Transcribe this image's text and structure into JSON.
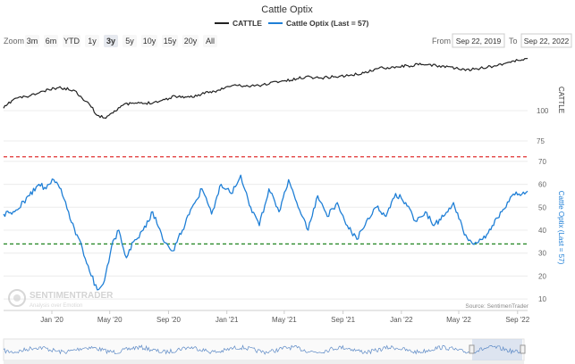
{
  "title": "Cattle Optix",
  "legend": [
    {
      "name": "CATTLE",
      "color": "#222222"
    },
    {
      "name": "Cattle Optix (Last = 57)",
      "color": "#1f7fd6"
    }
  ],
  "zoom": {
    "label": "Zoom",
    "buttons": [
      "3m",
      "6m",
      "YTD",
      "1y",
      "3y",
      "5y",
      "10y",
      "15y",
      "20y",
      "All"
    ],
    "active": "3y"
  },
  "range": {
    "from_label": "From",
    "from_value": "Sep 22, 2019",
    "to_label": "To",
    "to_value": "Sep 22, 2022"
  },
  "source": "Source: SentimenTrader",
  "logo": {
    "name": "SENTIMENTRADER",
    "tagline": "Analysis over Emotion"
  },
  "colors": {
    "cattle": "#222222",
    "optix": "#1f7fd6",
    "upper_line": "#e03030",
    "lower_line": "#2a8a2a",
    "navigator_fill": "#c9d6ea"
  },
  "chart_data": {
    "type": "line",
    "x_range": [
      "2019-09-22",
      "2022-09-22"
    ],
    "x_ticks": [
      "Jan '20",
      "May '20",
      "Sep '20",
      "Jan '21",
      "May '21",
      "Sep '21",
      "Jan '22",
      "May '22",
      "Sep '22"
    ],
    "x_tick_dates": [
      "2020-01-01",
      "2020-05-01",
      "2020-09-01",
      "2021-01-01",
      "2021-05-01",
      "2021-09-01",
      "2022-01-01",
      "2022-05-01",
      "2022-09-01"
    ],
    "upper_axis": {
      "label": "CATTLE",
      "ticks": [
        75,
        100
      ],
      "ylim": [
        75,
        150
      ]
    },
    "lower_axis": {
      "label": "Cattle Optix (Last = 57)",
      "ticks": [
        10,
        20,
        30,
        40,
        50,
        60,
        70
      ],
      "ylim": [
        5,
        75
      ]
    },
    "reference_lines": [
      {
        "value": 72,
        "color": "#e03030",
        "style": "dashed"
      },
      {
        "value": 34,
        "color": "#2a8a2a",
        "style": "dashed"
      }
    ],
    "series": [
      {
        "name": "CATTLE",
        "axis": "upper",
        "x": [
          "2019-09-22",
          "2019-10-15",
          "2019-11-15",
          "2019-12-15",
          "2020-01-15",
          "2020-02-15",
          "2020-03-01",
          "2020-03-20",
          "2020-04-05",
          "2020-04-20",
          "2020-05-05",
          "2020-05-25",
          "2020-06-15",
          "2020-07-15",
          "2020-08-15",
          "2020-09-15",
          "2020-10-15",
          "2020-11-15",
          "2020-12-15",
          "2021-01-15",
          "2021-02-15",
          "2021-03-15",
          "2021-04-15",
          "2021-05-15",
          "2021-06-15",
          "2021-07-15",
          "2021-08-15",
          "2021-09-15",
          "2021-10-15",
          "2021-11-15",
          "2021-12-15",
          "2022-01-15",
          "2022-02-15",
          "2022-03-15",
          "2022-04-15",
          "2022-05-15",
          "2022-06-15",
          "2022-07-15",
          "2022-08-15",
          "2022-09-22"
        ],
        "values": [
          102,
          110,
          112,
          116,
          119,
          117,
          112,
          105,
          96,
          94,
          98,
          104,
          106,
          106,
          108,
          112,
          111,
          114,
          117,
          121,
          120,
          121,
          124,
          125,
          128,
          127,
          128,
          129,
          131,
          135,
          136,
          137,
          138,
          137,
          136,
          133,
          135,
          137,
          140,
          143
        ]
      },
      {
        "name": "Cattle Optix (Last = 57)",
        "axis": "lower",
        "x": [
          "2019-09-22",
          "2019-10-15",
          "2019-11-15",
          "2019-12-05",
          "2019-12-20",
          "2020-01-05",
          "2020-01-20",
          "2020-02-05",
          "2020-02-20",
          "2020-03-05",
          "2020-03-20",
          "2020-04-05",
          "2020-04-20",
          "2020-05-05",
          "2020-05-20",
          "2020-06-05",
          "2020-06-20",
          "2020-07-10",
          "2020-07-30",
          "2020-08-20",
          "2020-09-10",
          "2020-09-30",
          "2020-10-20",
          "2020-11-10",
          "2020-11-30",
          "2020-12-20",
          "2021-01-10",
          "2021-01-30",
          "2021-02-20",
          "2021-03-10",
          "2021-03-30",
          "2021-04-20",
          "2021-05-10",
          "2021-05-30",
          "2021-06-20",
          "2021-07-10",
          "2021-07-30",
          "2021-08-20",
          "2021-09-10",
          "2021-09-30",
          "2021-10-20",
          "2021-11-10",
          "2021-11-30",
          "2021-12-20",
          "2022-01-10",
          "2022-01-30",
          "2022-02-20",
          "2022-03-10",
          "2022-03-30",
          "2022-04-20",
          "2022-05-10",
          "2022-05-30",
          "2022-06-20",
          "2022-07-10",
          "2022-07-30",
          "2022-08-20",
          "2022-09-22"
        ],
        "values": [
          47,
          48,
          55,
          60,
          58,
          62,
          58,
          48,
          38,
          32,
          22,
          14,
          18,
          33,
          40,
          28,
          35,
          40,
          48,
          36,
          31,
          40,
          50,
          58,
          47,
          60,
          56,
          64,
          50,
          42,
          58,
          48,
          62,
          50,
          40,
          55,
          46,
          52,
          42,
          36,
          44,
          50,
          46,
          56,
          52,
          44,
          48,
          42,
          46,
          52,
          40,
          34,
          36,
          42,
          48,
          55,
          57
        ]
      }
    ]
  }
}
